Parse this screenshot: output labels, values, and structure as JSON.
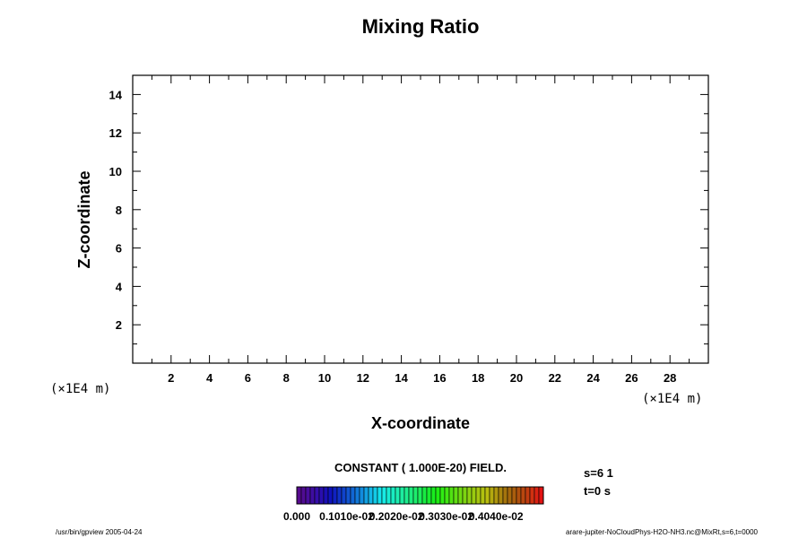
{
  "chart_data": {
    "type": "heatmap",
    "title": "Mixing Ratio",
    "xlabel": "X-coordinate",
    "ylabel": "Z-coordinate",
    "x_unit": "(×1E4 m)",
    "y_unit": "(×1E4 m)",
    "xlim": [
      0,
      30
    ],
    "ylim": [
      0,
      15
    ],
    "x_ticks": [
      2,
      4,
      6,
      8,
      10,
      12,
      14,
      16,
      18,
      20,
      22,
      24,
      26,
      28
    ],
    "y_ticks": [
      2,
      4,
      6,
      8,
      10,
      12,
      14
    ],
    "grid": false,
    "field_note": "CONSTANT ( 1.000E-20) FIELD.",
    "colorbar": {
      "min": 0.0,
      "max": 0.05,
      "n_segments": 55,
      "tick_labels": [
        "0.000",
        "0.1010e-02",
        "0.2020e-02",
        "0.3030e-02",
        "0.4040e-02"
      ]
    }
  },
  "annotations": {
    "s_label": "s=6 1",
    "t_label": "t=0 s",
    "footer_left": "/usr/bin/gpview 2005-04-24",
    "footer_right": "arare-jupiter-NoCloudPhys-H2O-NH3.nc@MixRt,s=6,t=0000"
  }
}
